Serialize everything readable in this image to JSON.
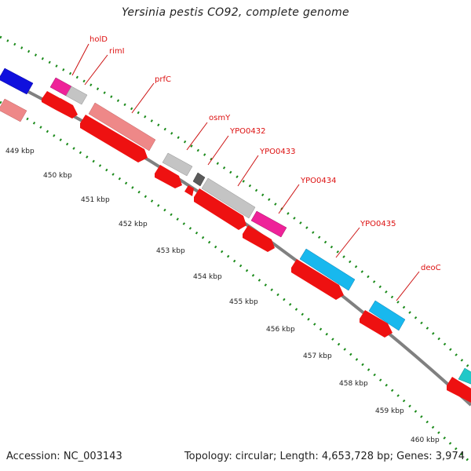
{
  "title": "Yersinia pestis CO92, complete genome",
  "footer": {
    "accession": "Accession: NC_003143",
    "summary": "Topology: circular; Length: 4,653,728 bp; Genes: 3,974"
  },
  "colors": {
    "backbone": "#808080",
    "ruler": "#1a8a1a",
    "cds_arrow": "#ee1111",
    "gene_label": "#dd1111",
    "blue": "#1010dd",
    "pink": "#ee8888",
    "magenta": "#ee2299",
    "silver": "#c4c4c4",
    "dark": "#5a5a5a",
    "cyan": "#18b8ee",
    "teal": "#20c8c8"
  },
  "ticks": [
    "449 kbp",
    "450 kbp",
    "451 kbp",
    "452 kbp",
    "453 kbp",
    "454 kbp",
    "455 kbp",
    "456 kbp",
    "457 kbp",
    "458 kbp",
    "459 kbp",
    "460 kbp"
  ],
  "gene_labels": [
    "holD",
    "rimI",
    "prfC",
    "osmY",
    "YPO0432",
    "YPO0433",
    "YPO0434",
    "YPO0435",
    "deoC"
  ]
}
